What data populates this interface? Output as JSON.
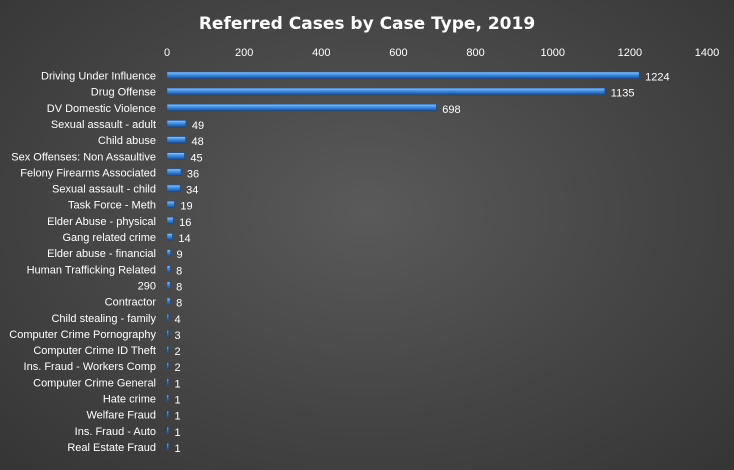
{
  "chart_data": {
    "type": "bar",
    "orientation": "horizontal",
    "title": "Referred Cases by Case Type, 2019",
    "xlabel": "",
    "ylabel": "",
    "xlim": [
      0,
      1400
    ],
    "x_ticks": [
      0,
      200,
      400,
      600,
      800,
      1000,
      1200,
      1400
    ],
    "x_axis_position": "top",
    "grid": false,
    "legend": "none",
    "bar_color": "#3a86d9",
    "categories": [
      "Driving Under Influence",
      "Drug Offense",
      "DV Domestic Violence",
      "Sexual assault - adult",
      "Child abuse",
      "Sex Offenses: Non Assaultive",
      "Felony Firearms Associated",
      "Sexual assault - child",
      "Task Force - Meth",
      "Elder Abuse - physical",
      "Gang related crime",
      "Elder abuse - financial",
      "Human Trafficking Related",
      "290",
      "Contractor",
      "Child stealing - family",
      "Computer Crime Pornography",
      "Computer Crime ID Theft",
      "Ins. Fraud - Workers Comp",
      "Computer Crime General",
      "Hate crime",
      "Welfare Fraud",
      "Ins. Fraud - Auto",
      "Real Estate Fraud"
    ],
    "values": [
      1224,
      1135,
      698,
      49,
      48,
      45,
      36,
      34,
      19,
      16,
      14,
      9,
      8,
      8,
      8,
      4,
      3,
      2,
      2,
      1,
      1,
      1,
      1,
      1
    ]
  }
}
